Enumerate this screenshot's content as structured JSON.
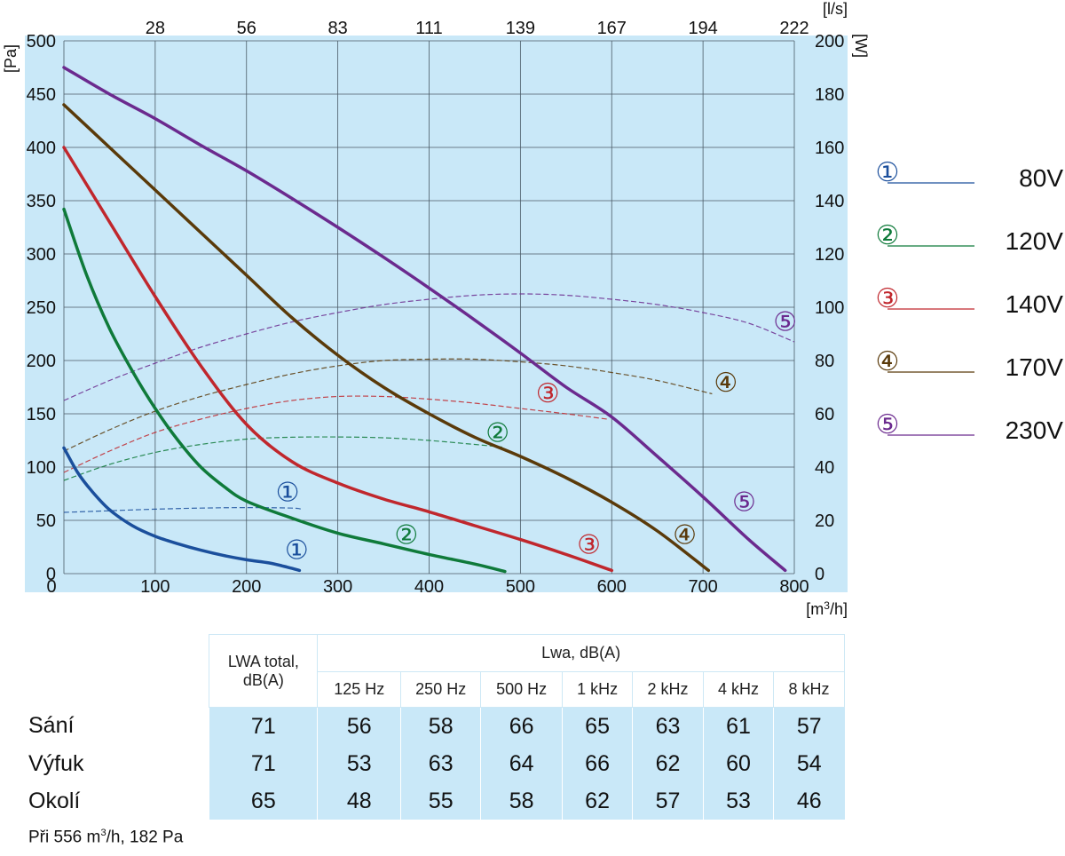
{
  "chart_data": {
    "type": "line",
    "title": "",
    "x_axis": {
      "unit": "[m3/h]",
      "range": [
        0,
        800
      ],
      "ticks": [
        0,
        100,
        200,
        300,
        400,
        500,
        600,
        700,
        800
      ]
    },
    "x2_axis": {
      "unit": "[l/s]",
      "ticks": [
        "28",
        "56",
        "83",
        "111",
        "139",
        "167",
        "194",
        "222"
      ],
      "tick_positions_m3h": [
        100,
        200,
        300,
        400,
        500,
        600,
        700,
        800
      ]
    },
    "y_axis": {
      "unit": "[Pa]",
      "range": [
        0,
        500
      ],
      "ticks": [
        0,
        50,
        100,
        150,
        200,
        250,
        300,
        350,
        400,
        450,
        500
      ]
    },
    "y2_axis": {
      "unit": "[W]",
      "range": [
        0,
        200
      ],
      "ticks": [
        0,
        20,
        40,
        60,
        80,
        100,
        120,
        140,
        160,
        180,
        200
      ]
    },
    "grid": true,
    "legend_position": "right",
    "series": [
      {
        "id": "1",
        "name": "80V",
        "color": "#1b4f9c",
        "pressure": {
          "x": [
            0,
            15,
            30,
            50,
            75,
            100,
            125,
            150,
            175,
            200,
            225,
            245,
            258
          ],
          "y": [
            118,
            95,
            78,
            60,
            45,
            35,
            28,
            22,
            17,
            13,
            10,
            6,
            3
          ]
        },
        "power": {
          "x": [
            0,
            50,
            100,
            150,
            200,
            250,
            260
          ],
          "y": [
            23,
            23.6,
            24.2,
            24.6,
            24.8,
            24.6,
            24.2
          ]
        }
      },
      {
        "id": "2",
        "name": "120V",
        "color": "#0f7a3a",
        "pressure": {
          "x": [
            0,
            25,
            50,
            75,
            100,
            125,
            150,
            175,
            200,
            250,
            300,
            350,
            400,
            450,
            483
          ],
          "y": [
            342,
            280,
            230,
            190,
            155,
            125,
            100,
            82,
            68,
            52,
            38,
            28,
            18,
            9,
            2
          ]
        },
        "power": {
          "x": [
            0,
            50,
            100,
            150,
            200,
            250,
            300,
            350,
            400,
            450,
            480
          ],
          "y": [
            35,
            41,
            45.5,
            48.5,
            50.5,
            51.2,
            51.3,
            51,
            50,
            48.5,
            47.5
          ]
        }
      },
      {
        "id": "3",
        "name": "140V",
        "color": "#c0272d",
        "pressure": {
          "x": [
            0,
            50,
            100,
            150,
            200,
            250,
            300,
            350,
            400,
            450,
            500,
            550,
            600
          ],
          "y": [
            400,
            330,
            260,
            195,
            140,
            105,
            85,
            70,
            58,
            45,
            32,
            18,
            3
          ]
        },
        "power": {
          "x": [
            0,
            50,
            100,
            150,
            200,
            250,
            300,
            350,
            400,
            450,
            500,
            550,
            595
          ],
          "y": [
            38,
            46,
            53,
            58,
            62,
            65,
            66.5,
            66.5,
            65.5,
            64,
            62,
            60,
            58
          ]
        }
      },
      {
        "id": "4",
        "name": "170V",
        "color": "#5a3a0a",
        "pressure": {
          "x": [
            0,
            50,
            100,
            150,
            200,
            250,
            300,
            350,
            400,
            450,
            500,
            550,
            600,
            650,
            706
          ],
          "y": [
            440,
            400,
            360,
            320,
            280,
            240,
            205,
            175,
            150,
            128,
            110,
            90,
            67,
            40,
            3
          ]
        },
        "power": {
          "x": [
            0,
            50,
            100,
            150,
            200,
            250,
            300,
            350,
            400,
            450,
            500,
            550,
            600,
            650,
            710
          ],
          "y": [
            46,
            54,
            61,
            66.5,
            71,
            75,
            78,
            80,
            80.5,
            80.5,
            79.5,
            78,
            75.5,
            72.5,
            67.5
          ]
        }
      },
      {
        "id": "5",
        "name": "230V",
        "color": "#6b2a8e",
        "pressure": {
          "x": [
            0,
            50,
            100,
            150,
            200,
            250,
            300,
            350,
            400,
            450,
            500,
            550,
            600,
            650,
            700,
            750,
            790
          ],
          "y": [
            475,
            450,
            427,
            402,
            378,
            352,
            325,
            297,
            268,
            238,
            207,
            175,
            147,
            110,
            72,
            32,
            3
          ]
        },
        "power": {
          "x": [
            0,
            50,
            100,
            150,
            200,
            250,
            300,
            350,
            400,
            450,
            500,
            550,
            600,
            650,
            700,
            750,
            800
          ],
          "y": [
            65,
            72.5,
            79,
            85,
            90,
            94.5,
            98,
            101,
            103,
            104.5,
            105,
            104.5,
            103,
            101,
            98,
            94,
            87
          ]
        }
      }
    ],
    "curve_markers": [
      {
        "label": "①",
        "color": "#1b4f9c",
        "x": 255,
        "y": 23
      },
      {
        "label": "①",
        "color": "#1b4f9c",
        "x": 245,
        "y": 77
      },
      {
        "label": "②",
        "color": "#0f7a3a",
        "x": 375,
        "y": 37
      },
      {
        "label": "②",
        "color": "#0f7a3a",
        "x": 475,
        "y": 133
      },
      {
        "label": "③",
        "color": "#c0272d",
        "x": 575,
        "y": 28
      },
      {
        "label": "③",
        "color": "#c0272d",
        "x": 530,
        "y": 170
      },
      {
        "label": "④",
        "color": "#5a3a0a",
        "x": 680,
        "y": 37
      },
      {
        "label": "④",
        "color": "#5a3a0a",
        "x": 725,
        "y": 180
      },
      {
        "label": "⑤",
        "color": "#6b2a8e",
        "x": 745,
        "y": 68
      },
      {
        "label": "⑤",
        "color": "#6b2a8e",
        "x": 790,
        "y": 237
      }
    ]
  },
  "legend": [
    {
      "symbol": "①",
      "label": "80V",
      "color": "#1b4f9c"
    },
    {
      "symbol": "②",
      "label": "120V",
      "color": "#0f7a3a"
    },
    {
      "symbol": "③",
      "label": "140V",
      "color": "#c0272d"
    },
    {
      "symbol": "④",
      "label": "170V",
      "color": "#5a3a0a"
    },
    {
      "symbol": "⑤",
      "label": "230V",
      "color": "#6b2a8e"
    }
  ],
  "colors": {
    "plot_background": "#c9e8f8",
    "grid": "#4a5a66",
    "table_cell": "#c9e8f8"
  },
  "table": {
    "total_header_1": "LWA total,",
    "total_header_2": "dB(A)",
    "band_header": "Lwa, dB(A)",
    "bands": [
      "125 Hz",
      "250 Hz",
      "500 Hz",
      "1 kHz",
      "2 kHz",
      "4 kHz",
      "8 kHz"
    ],
    "rows": [
      {
        "label": "Sání",
        "total": "71",
        "values": [
          "56",
          "58",
          "66",
          "65",
          "63",
          "61",
          "57"
        ]
      },
      {
        "label": "Výfuk",
        "total": "71",
        "values": [
          "53",
          "63",
          "64",
          "66",
          "62",
          "60",
          "54"
        ]
      },
      {
        "label": "Okolí",
        "total": "65",
        "values": [
          "48",
          "55",
          "58",
          "62",
          "57",
          "53",
          "46"
        ]
      }
    ]
  },
  "footnote_prefix": "Při 556 m",
  "footnote_sup": "3",
  "footnote_suffix": "/h, 182 Pa"
}
